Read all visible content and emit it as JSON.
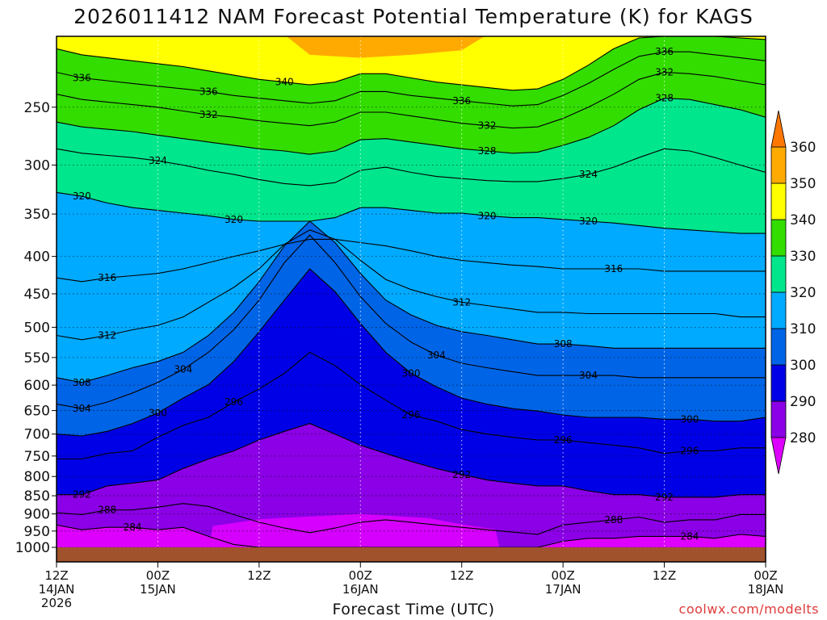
{
  "title": "2026011412 NAM Forecast Potential Temperature (K) for KAGS",
  "xlabel": "Forecast Time (UTC)",
  "credit": "coolwx.com/modelts",
  "colors": {
    "ground": "#a0522d",
    "levels": [
      "#dd00ff",
      "#8b00e6",
      "#0000e6",
      "#0064e6",
      "#00aaff",
      "#00e68c",
      "#33dd00",
      "#ffff00",
      "#ffaa00",
      "#ff7700"
    ]
  },
  "chart_data": {
    "type": "heatmap",
    "title": "2026011412 NAM Forecast Potential Temperature (K) for KAGS",
    "xlabel": "Forecast Time (UTC)",
    "ylabel": "",
    "y_scale": "log",
    "y_axis_direction": "pressure decreasing upward",
    "ylim": [
      1000,
      200
    ],
    "grid": true,
    "x_ticks": [
      {
        "top": "12Z",
        "bottom": "14JAN",
        "third": "2026",
        "hour": 0
      },
      {
        "top": "00Z",
        "bottom": "15JAN",
        "third": "",
        "hour": 12
      },
      {
        "top": "12Z",
        "bottom": "",
        "third": "",
        "hour": 24
      },
      {
        "top": "00Z",
        "bottom": "16JAN",
        "third": "",
        "hour": 36
      },
      {
        "top": "12Z",
        "bottom": "",
        "third": "",
        "hour": 48
      },
      {
        "top": "00Z",
        "bottom": "17JAN",
        "third": "",
        "hour": 60
      },
      {
        "top": "12Z",
        "bottom": "",
        "third": "",
        "hour": 72
      },
      {
        "top": "00Z",
        "bottom": "18JAN",
        "third": "",
        "hour": 84
      }
    ],
    "y_ticks": [
      "250",
      "300",
      "350",
      "400",
      "450",
      "500",
      "550",
      "600",
      "650",
      "700",
      "750",
      "800",
      "850",
      "900",
      "950",
      "1000"
    ],
    "colorbar": {
      "labels": [
        "280",
        "290",
        "300",
        "310",
        "320",
        "330",
        "340",
        "350",
        "360"
      ],
      "extend": "both"
    },
    "isentropes_hour": [
      0,
      3,
      6,
      9,
      12,
      15,
      18,
      21,
      24,
      27,
      30,
      33,
      36,
      39,
      42,
      45,
      48,
      51,
      54,
      57,
      60,
      63,
      66,
      69,
      72,
      75,
      78,
      81,
      84
    ],
    "isentropes": [
      {
        "theta": 284,
        "p": [
          932,
          946,
          939,
          939,
          946,
          939,
          966,
          991,
          1000,
          1000,
          1000,
          1000,
          1000,
          1000,
          1000,
          1000,
          1000,
          1000,
          1000,
          1000,
          981,
          972,
          972,
          966,
          966,
          966,
          972,
          960,
          966
        ]
      },
      {
        "theta": 288,
        "p": [
          897,
          902,
          889,
          889,
          881,
          871,
          879,
          902,
          924,
          941,
          955,
          941,
          924,
          917,
          924,
          932,
          939,
          946,
          953,
          960,
          932,
          924,
          917,
          909,
          924,
          917,
          917,
          902,
          902
        ]
      },
      {
        "theta": 292,
        "p": [
          847,
          847,
          824,
          817,
          809,
          780,
          757,
          738,
          713,
          694,
          677,
          700,
          725,
          744,
          763,
          780,
          795,
          809,
          817,
          824,
          824,
          837,
          847,
          847,
          854,
          854,
          854,
          847,
          847
        ]
      },
      {
        "theta": 296,
        "p": [
          757,
          757,
          744,
          738,
          707,
          681,
          664,
          633,
          607,
          578,
          541,
          564,
          599,
          629,
          659,
          672,
          690,
          700,
          707,
          713,
          713,
          719,
          725,
          731,
          744,
          738,
          738,
          731,
          731
        ]
      },
      {
        "theta": 300,
        "p": [
          700,
          704,
          694,
          677,
          655,
          625,
          599,
          557,
          507,
          459,
          416,
          447,
          494,
          541,
          578,
          603,
          625,
          637,
          646,
          651,
          659,
          664,
          664,
          664,
          668,
          668,
          672,
          672,
          664
        ]
      },
      {
        "theta": 304,
        "p": [
          637,
          646,
          633,
          615,
          595,
          571,
          541,
          504,
          459,
          408,
          374,
          408,
          454,
          494,
          524,
          546,
          560,
          568,
          575,
          582,
          582,
          582,
          582,
          586,
          586,
          586,
          586,
          586,
          586
        ]
      },
      {
        "theta": 308,
        "p": [
          586,
          595,
          582,
          568,
          557,
          541,
          513,
          477,
          433,
          387,
          358,
          383,
          422,
          459,
          481,
          497,
          507,
          513,
          520,
          527,
          527,
          530,
          534,
          534,
          534,
          534,
          534,
          534,
          534
        ]
      },
      {
        "theta": 312,
        "p": [
          513,
          520,
          513,
          504,
          497,
          484,
          462,
          441,
          416,
          385,
          368,
          379,
          405,
          430,
          444,
          454,
          462,
          467,
          472,
          477,
          477,
          479,
          479,
          479,
          479,
          479,
          479,
          484,
          484
        ]
      },
      {
        "theta": 316,
        "p": [
          428,
          433,
          428,
          425,
          422,
          416,
          408,
          400,
          393,
          385,
          379,
          379,
          383,
          387,
          393,
          400,
          405,
          408,
          411,
          413,
          416,
          416,
          416,
          416,
          419,
          419,
          419,
          419,
          419
        ]
      },
      {
        "theta": 320,
        "p": [
          327,
          331,
          338,
          343,
          346,
          349,
          352,
          356,
          358,
          358,
          358,
          354,
          343,
          343,
          346,
          349,
          349,
          352,
          354,
          354,
          356,
          358,
          360,
          363,
          366,
          368,
          370,
          372,
          372
        ]
      },
      {
        "theta": 324,
        "p": [
          285,
          289,
          291,
          293,
          296,
          300,
          305,
          309,
          314,
          318,
          320,
          317,
          305,
          302,
          307,
          311,
          313,
          315,
          316,
          316,
          313,
          309,
          302,
          293,
          285,
          287,
          293,
          300,
          307
        ]
      },
      {
        "theta": 328,
        "p": [
          262,
          266,
          268,
          270,
          273,
          276,
          279,
          282,
          285,
          287,
          290,
          287,
          277,
          276,
          279,
          282,
          285,
          287,
          289,
          288,
          282,
          275,
          265,
          252,
          243,
          244,
          248,
          252,
          258
        ]
      },
      {
        "theta": 332,
        "p": [
          240,
          244,
          246,
          248,
          250,
          253,
          256,
          258,
          261,
          263,
          265,
          262,
          254,
          254,
          257,
          260,
          263,
          265,
          267,
          266,
          259,
          250,
          240,
          229,
          224,
          225,
          227,
          230,
          233
        ]
      },
      {
        "theta": 336,
        "p": [
          224,
          228,
          230,
          232,
          234,
          236,
          238,
          241,
          243,
          245,
          247,
          245,
          238,
          238,
          241,
          243,
          245,
          247,
          249,
          248,
          241,
          232,
          222,
          213,
          210,
          210,
          212,
          214,
          216
        ]
      },
      {
        "theta": 340,
        "p": [
          208,
          212,
          214,
          216,
          218,
          220,
          223,
          226,
          229,
          231,
          233,
          231,
          225,
          225,
          228,
          231,
          233,
          235,
          237,
          236,
          229,
          219,
          208,
          201,
          200,
          200,
          200,
          201,
          202
        ]
      }
    ]
  }
}
